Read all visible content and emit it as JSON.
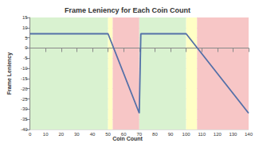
{
  "chart_data": {
    "type": "line",
    "title": "Frame Leniency for Each Coin Count",
    "x_label": "Coin Count",
    "y_label": "Frame Leniency",
    "x": [
      0,
      50,
      70,
      71,
      100,
      140
    ],
    "values": [
      7,
      7,
      -32,
      7,
      7,
      -32
    ],
    "color": "#5470a8",
    "xlim": [
      0,
      140
    ],
    "xticks": [
      0,
      10,
      20,
      30,
      40,
      50,
      60,
      70,
      80,
      90,
      100,
      110,
      120,
      130,
      140
    ],
    "ylim": [
      -40,
      15
    ],
    "yticks": [
      -40,
      -35,
      -30,
      -25,
      -20,
      -15,
      -10,
      -5,
      0,
      5,
      10,
      15
    ],
    "grid": true,
    "regions": [
      {
        "start": 0,
        "end": 50,
        "color": "#d9f2d0"
      },
      {
        "start": 50,
        "end": 53,
        "color": "#ffffc5"
      },
      {
        "start": 53,
        "end": 70,
        "color": "#f7c6c6"
      },
      {
        "start": 70,
        "end": 100,
        "color": "#d9f2d0"
      },
      {
        "start": 100,
        "end": 107,
        "color": "#ffffc5"
      },
      {
        "start": 107,
        "end": 140,
        "color": "#f7c6c6"
      }
    ]
  }
}
